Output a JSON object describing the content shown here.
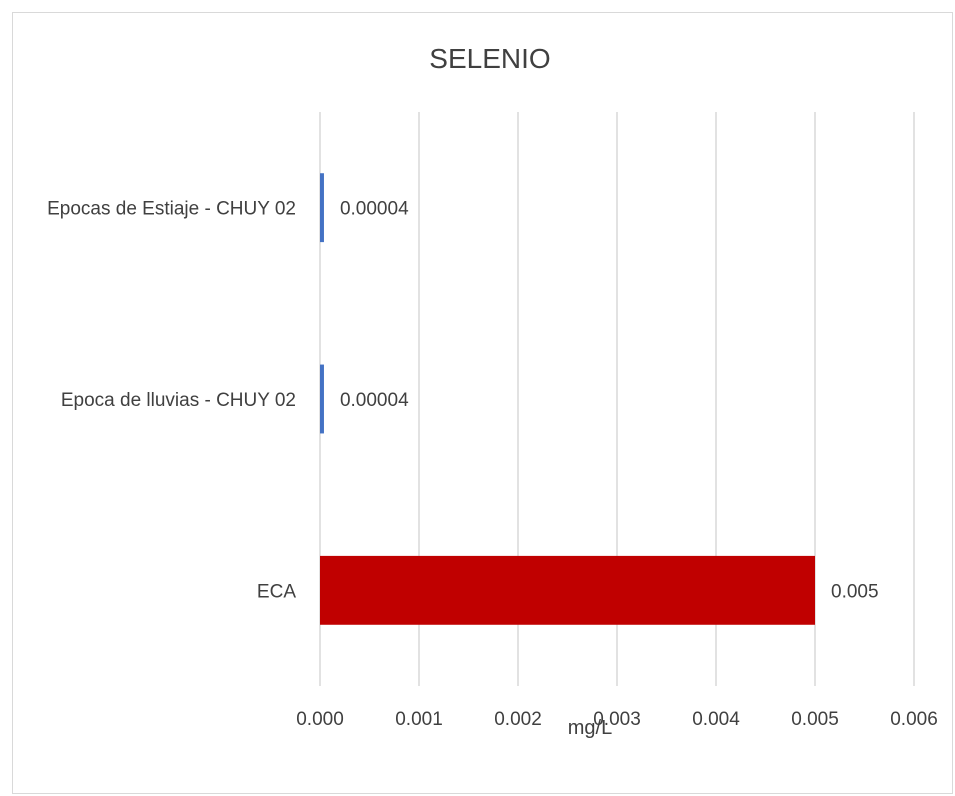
{
  "chart_data": {
    "type": "bar",
    "orientation": "horizontal",
    "title": "SELENIO",
    "xlabel": "mg/L",
    "ylabel": "",
    "categories": [
      "ECA",
      "Epoca de  lluvias - CHUY 02",
      "Epocas de Estiaje - CHUY 02"
    ],
    "values": [
      0.005,
      4e-05,
      4e-05
    ],
    "data_labels": [
      "0.005",
      "0.00004",
      "0.00004"
    ],
    "bar_colors": [
      "#c00000",
      "#4472c4",
      "#4472c4"
    ],
    "xlim": [
      0,
      0.006
    ],
    "x_ticks": [
      "0.000",
      "0.001",
      "0.002",
      "0.003",
      "0.004",
      "0.005",
      "0.006"
    ],
    "grid": true,
    "legend": "none"
  }
}
